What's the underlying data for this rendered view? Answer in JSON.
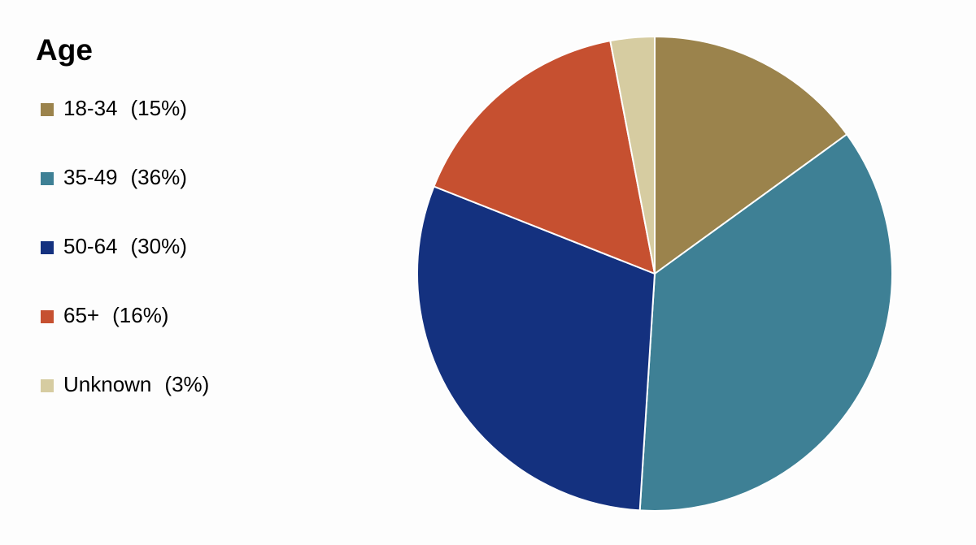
{
  "chart_data": {
    "type": "pie",
    "title": "Age",
    "categories": [
      "18-34",
      "35-49",
      "50-64",
      "65+",
      "Unknown"
    ],
    "values": [
      15,
      36,
      30,
      16,
      3
    ],
    "value_labels": [
      "(15%)",
      "(36%)",
      "(30%)",
      "(16%)",
      "(3%)"
    ],
    "colors": [
      "#9b834c",
      "#3e8095",
      "#14317f",
      "#c65030",
      "#d6cca1"
    ],
    "legend": "left"
  }
}
